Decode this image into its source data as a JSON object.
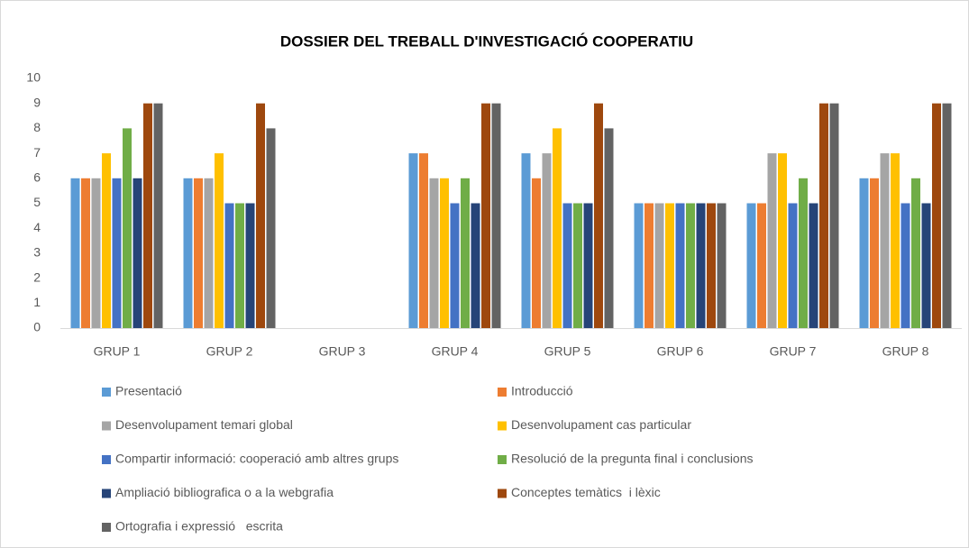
{
  "chart_data": {
    "type": "bar",
    "title": "DOSSIER DEL TREBALL D'INVESTIGACIÓ COOPERATIU",
    "categories": [
      "GRUP 1",
      "GRUP 2",
      "GRUP 3",
      "GRUP 4",
      "GRUP 5",
      "GRUP 6",
      "GRUP 7",
      "GRUP 8"
    ],
    "series": [
      {
        "name": "Presentació",
        "color": "#5b9bd5",
        "values": [
          6,
          6,
          0,
          7,
          7,
          5,
          5,
          6
        ]
      },
      {
        "name": "Introducció",
        "color": "#ed7d31",
        "values": [
          6,
          6,
          0,
          7,
          6,
          5,
          5,
          6
        ]
      },
      {
        "name": "Desenvolupament temari global",
        "color": "#a5a5a5",
        "values": [
          6,
          6,
          0,
          6,
          7,
          5,
          7,
          7
        ]
      },
      {
        "name": "Desenvolupament cas particular",
        "color": "#ffc000",
        "values": [
          7,
          7,
          0,
          6,
          8,
          5,
          7,
          7
        ]
      },
      {
        "name": "Compartir informació: cooperació amb altres grups",
        "color": "#4472c4",
        "values": [
          6,
          5,
          0,
          5,
          5,
          5,
          5,
          5
        ]
      },
      {
        "name": "Resolució de la pregunta final i conclusions",
        "color": "#70ad47",
        "values": [
          8,
          5,
          0,
          6,
          5,
          5,
          6,
          6
        ]
      },
      {
        "name": "Ampliació bibliografica o a la webgrafia",
        "color": "#264478",
        "values": [
          6,
          5,
          0,
          5,
          5,
          5,
          5,
          5
        ]
      },
      {
        "name": "Conceptes temàtics  i lèxic",
        "color": "#9e480e",
        "values": [
          9,
          9,
          0,
          9,
          9,
          5,
          9,
          9
        ]
      },
      {
        "name": "Ortografia i expressió   escrita",
        "color": "#636363",
        "values": [
          9,
          8,
          0,
          9,
          8,
          5,
          9,
          9
        ]
      }
    ],
    "ylim": [
      0,
      10
    ],
    "yticks": [
      0,
      1,
      2,
      3,
      4,
      5,
      6,
      7,
      8,
      9,
      10
    ],
    "grid": false,
    "legend": "bottom"
  }
}
